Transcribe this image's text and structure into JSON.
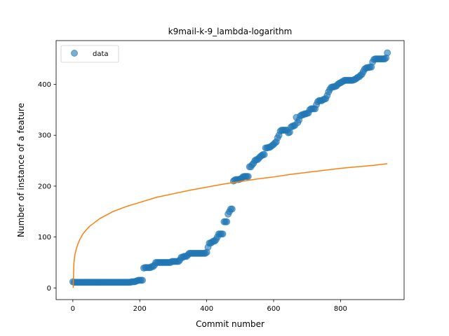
{
  "chart_data": {
    "type": "scatter",
    "title": "k9mail-k-9_lambda-logarithm",
    "xlabel": "Commit number",
    "ylabel": "Number of instance of a feature",
    "xlim": [
      -50,
      990
    ],
    "ylim": [
      -23,
      486
    ],
    "xticks": [
      0,
      200,
      400,
      600,
      800
    ],
    "yticks": [
      0,
      100,
      200,
      300,
      400
    ],
    "grid": false,
    "legend": {
      "placement": "top-left",
      "entries": [
        "data"
      ]
    },
    "colors": {
      "data": "#1f77b4",
      "fit": "#ff7f0e"
    },
    "series": [
      {
        "name": "data",
        "kind": "scatter",
        "points": [
          [
            0,
            12
          ],
          [
            4,
            11
          ],
          [
            8,
            11
          ],
          [
            12,
            11
          ],
          [
            16,
            11
          ],
          [
            20,
            11
          ],
          [
            24,
            11
          ],
          [
            28,
            11
          ],
          [
            32,
            11
          ],
          [
            36,
            11
          ],
          [
            40,
            11
          ],
          [
            44,
            11
          ],
          [
            48,
            11
          ],
          [
            52,
            11
          ],
          [
            56,
            11
          ],
          [
            60,
            11
          ],
          [
            64,
            11
          ],
          [
            68,
            11
          ],
          [
            72,
            11
          ],
          [
            76,
            11
          ],
          [
            80,
            11
          ],
          [
            84,
            11
          ],
          [
            88,
            11
          ],
          [
            92,
            11
          ],
          [
            96,
            11
          ],
          [
            100,
            11
          ],
          [
            104,
            11
          ],
          [
            108,
            11
          ],
          [
            112,
            11
          ],
          [
            116,
            11
          ],
          [
            120,
            11
          ],
          [
            124,
            11
          ],
          [
            128,
            11
          ],
          [
            132,
            11
          ],
          [
            136,
            11
          ],
          [
            140,
            11
          ],
          [
            144,
            11
          ],
          [
            148,
            11
          ],
          [
            152,
            11
          ],
          [
            156,
            11
          ],
          [
            160,
            11
          ],
          [
            164,
            11
          ],
          [
            168,
            11
          ],
          [
            172,
            11
          ],
          [
            176,
            12
          ],
          [
            180,
            12
          ],
          [
            184,
            12
          ],
          [
            188,
            13
          ],
          [
            192,
            14
          ],
          [
            196,
            15
          ],
          [
            200,
            15
          ],
          [
            204,
            15
          ],
          [
            208,
            15
          ],
          [
            212,
            39
          ],
          [
            216,
            40
          ],
          [
            220,
            40
          ],
          [
            224,
            40
          ],
          [
            228,
            40
          ],
          [
            232,
            40
          ],
          [
            236,
            42
          ],
          [
            240,
            42
          ],
          [
            244,
            45
          ],
          [
            248,
            50
          ],
          [
            252,
            50
          ],
          [
            256,
            50
          ],
          [
            260,
            50
          ],
          [
            264,
            50
          ],
          [
            268,
            50
          ],
          [
            272,
            50
          ],
          [
            276,
            50
          ],
          [
            280,
            50
          ],
          [
            284,
            50
          ],
          [
            288,
            50
          ],
          [
            292,
            50
          ],
          [
            296,
            52
          ],
          [
            300,
            52
          ],
          [
            304,
            52
          ],
          [
            308,
            52
          ],
          [
            312,
            52
          ],
          [
            316,
            52
          ],
          [
            320,
            55
          ],
          [
            324,
            60
          ],
          [
            328,
            60
          ],
          [
            332,
            62
          ],
          [
            336,
            62
          ],
          [
            340,
            62
          ],
          [
            344,
            65
          ],
          [
            348,
            68
          ],
          [
            352,
            68
          ],
          [
            356,
            68
          ],
          [
            360,
            68
          ],
          [
            364,
            68
          ],
          [
            368,
            68
          ],
          [
            372,
            68
          ],
          [
            376,
            68
          ],
          [
            380,
            68
          ],
          [
            384,
            68
          ],
          [
            388,
            68
          ],
          [
            392,
            68
          ],
          [
            396,
            68
          ],
          [
            400,
            70
          ],
          [
            404,
            80
          ],
          [
            408,
            88
          ],
          [
            412,
            88
          ],
          [
            416,
            90
          ],
          [
            420,
            92
          ],
          [
            424,
            92
          ],
          [
            428,
            95
          ],
          [
            432,
            100
          ],
          [
            436,
            106
          ],
          [
            440,
            106
          ],
          [
            444,
            106
          ],
          [
            448,
            106
          ],
          [
            452,
            130
          ],
          [
            456,
            130
          ],
          [
            460,
            130
          ],
          [
            464,
            145
          ],
          [
            468,
            150
          ],
          [
            472,
            155
          ],
          [
            476,
            155
          ],
          [
            480,
            210
          ],
          [
            484,
            212
          ],
          [
            488,
            213
          ],
          [
            492,
            213
          ],
          [
            496,
            213
          ],
          [
            500,
            214
          ],
          [
            504,
            215
          ],
          [
            508,
            218
          ],
          [
            512,
            219
          ],
          [
            516,
            219
          ],
          [
            520,
            219
          ],
          [
            524,
            219
          ],
          [
            528,
            238
          ],
          [
            532,
            238
          ],
          [
            536,
            242
          ],
          [
            540,
            245
          ],
          [
            544,
            250
          ],
          [
            548,
            252
          ],
          [
            552,
            252
          ],
          [
            556,
            255
          ],
          [
            560,
            258
          ],
          [
            564,
            260
          ],
          [
            568,
            262
          ],
          [
            572,
            262
          ],
          [
            576,
            275
          ],
          [
            580,
            275
          ],
          [
            584,
            276
          ],
          [
            588,
            276
          ],
          [
            592,
            278
          ],
          [
            596,
            280
          ],
          [
            600,
            282
          ],
          [
            604,
            285
          ],
          [
            608,
            287
          ],
          [
            612,
            295
          ],
          [
            616,
            300
          ],
          [
            620,
            308
          ],
          [
            624,
            310
          ],
          [
            628,
            310
          ],
          [
            632,
            310
          ],
          [
            636,
            310
          ],
          [
            640,
            310
          ],
          [
            644,
            305
          ],
          [
            648,
            306
          ],
          [
            652,
            316
          ],
          [
            656,
            318
          ],
          [
            660,
            318
          ],
          [
            664,
            320
          ],
          [
            668,
            335
          ],
          [
            672,
            325
          ],
          [
            676,
            330
          ],
          [
            680,
            338
          ],
          [
            684,
            340
          ],
          [
            688,
            340
          ],
          [
            692,
            342
          ],
          [
            696,
            342
          ],
          [
            700,
            343
          ],
          [
            704,
            344
          ],
          [
            708,
            350
          ],
          [
            712,
            352
          ],
          [
            716,
            352
          ],
          [
            720,
            352
          ],
          [
            724,
            352
          ],
          [
            728,
            360
          ],
          [
            732,
            366
          ],
          [
            736,
            368
          ],
          [
            740,
            368
          ],
          [
            744,
            368
          ],
          [
            748,
            370
          ],
          [
            752,
            371
          ],
          [
            756,
            372
          ],
          [
            760,
            378
          ],
          [
            764,
            385
          ],
          [
            768,
            390
          ],
          [
            772,
            394
          ],
          [
            776,
            395
          ],
          [
            780,
            395
          ],
          [
            784,
            396
          ],
          [
            788,
            397
          ],
          [
            792,
            400
          ],
          [
            796,
            402
          ],
          [
            800,
            403
          ],
          [
            804,
            405
          ],
          [
            808,
            406
          ],
          [
            812,
            408
          ],
          [
            816,
            408
          ],
          [
            820,
            408
          ],
          [
            824,
            408
          ],
          [
            828,
            408
          ],
          [
            832,
            408
          ],
          [
            836,
            408
          ],
          [
            840,
            409
          ],
          [
            844,
            410
          ],
          [
            848,
            412
          ],
          [
            852,
            414
          ],
          [
            856,
            415
          ],
          [
            860,
            418
          ],
          [
            864,
            420
          ],
          [
            868,
            425
          ],
          [
            872,
            430
          ],
          [
            876,
            432
          ],
          [
            880,
            433
          ],
          [
            884,
            433
          ],
          [
            888,
            434
          ],
          [
            892,
            434
          ],
          [
            896,
            444
          ],
          [
            900,
            449
          ],
          [
            904,
            450
          ],
          [
            908,
            450
          ],
          [
            912,
            450
          ],
          [
            916,
            450
          ],
          [
            920,
            450
          ],
          [
            924,
            450
          ],
          [
            928,
            450
          ],
          [
            932,
            450
          ],
          [
            936,
            452
          ],
          [
            940,
            462
          ]
        ]
      },
      {
        "kind": "line",
        "points": [
          [
            1,
            0
          ],
          [
            3,
            48
          ],
          [
            6,
            65
          ],
          [
            10,
            76
          ],
          [
            15,
            86
          ],
          [
            20,
            94
          ],
          [
            30,
            106
          ],
          [
            40,
            114
          ],
          [
            50,
            121
          ],
          [
            60,
            126
          ],
          [
            80,
            136
          ],
          [
            100,
            143
          ],
          [
            120,
            150
          ],
          [
            140,
            155
          ],
          [
            160,
            160
          ],
          [
            180,
            164
          ],
          [
            200,
            168
          ],
          [
            250,
            178
          ],
          [
            300,
            185
          ],
          [
            350,
            192
          ],
          [
            400,
            198
          ],
          [
            450,
            204
          ],
          [
            500,
            209
          ],
          [
            550,
            214
          ],
          [
            600,
            218
          ],
          [
            650,
            223
          ],
          [
            700,
            227
          ],
          [
            750,
            231
          ],
          [
            800,
            235
          ],
          [
            850,
            238
          ],
          [
            900,
            241
          ],
          [
            940,
            244
          ]
        ]
      }
    ]
  }
}
